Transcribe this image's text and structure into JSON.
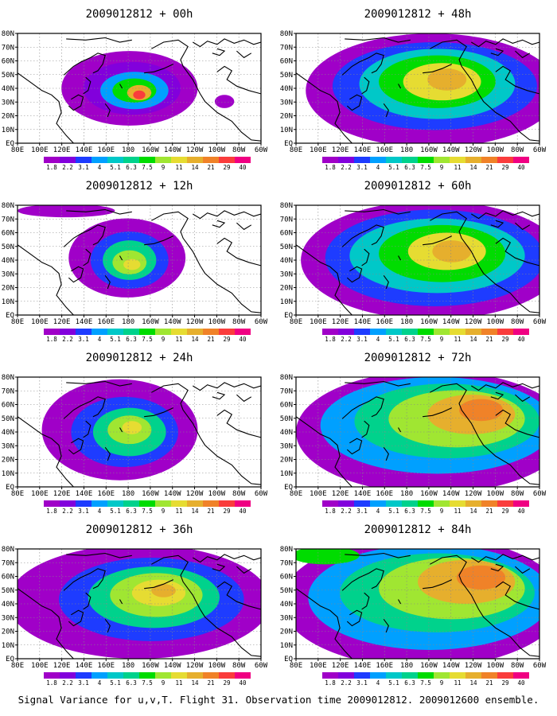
{
  "caption": "Signal Variance for u,v,T. Flight 31. Observation time 2009012812. 2009012600 ensemble.",
  "colorbar": {
    "labels": [
      "1.8",
      "2.2",
      "3.1",
      "4",
      "5.1",
      "6.3",
      "7.5",
      "9",
      "11",
      "14",
      "21",
      "29",
      "40"
    ],
    "colors": [
      "#a000c8",
      "#8200dc",
      "#1e3cff",
      "#00a0ff",
      "#00c8c8",
      "#00d28c",
      "#00dc00",
      "#a0e632",
      "#e6dc32",
      "#e6af2d",
      "#f08228",
      "#fa3c3c",
      "#f00082"
    ]
  },
  "axes": {
    "x_ticks": [
      "80E",
      "100E",
      "120E",
      "140E",
      "160E",
      "180",
      "160W",
      "140W",
      "120W",
      "100W",
      "80W",
      "60W"
    ],
    "y_ticks": [
      "EQ",
      "10N",
      "20N",
      "30N",
      "40N",
      "50N",
      "60N",
      "70N",
      "80N"
    ]
  },
  "chart_data": {
    "type": "heatmap",
    "x_range": [
      "80E",
      "60W"
    ],
    "y_range": [
      "EQ",
      "80N"
    ],
    "panels": [
      {
        "title": "2009012812 + 00h",
        "max_level": "29"
      },
      {
        "title": "2009012812 + 48h",
        "max_level": "14"
      },
      {
        "title": "2009012812 + 12h",
        "max_level": "11"
      },
      {
        "title": "2009012812 + 60h",
        "max_level": "14"
      },
      {
        "title": "2009012812 + 24h",
        "max_level": "11"
      },
      {
        "title": "2009012812 + 72h",
        "max_level": "21"
      },
      {
        "title": "2009012812 + 36h",
        "max_level": "14"
      },
      {
        "title": "2009012812 + 84h",
        "max_level": "21"
      }
    ]
  }
}
